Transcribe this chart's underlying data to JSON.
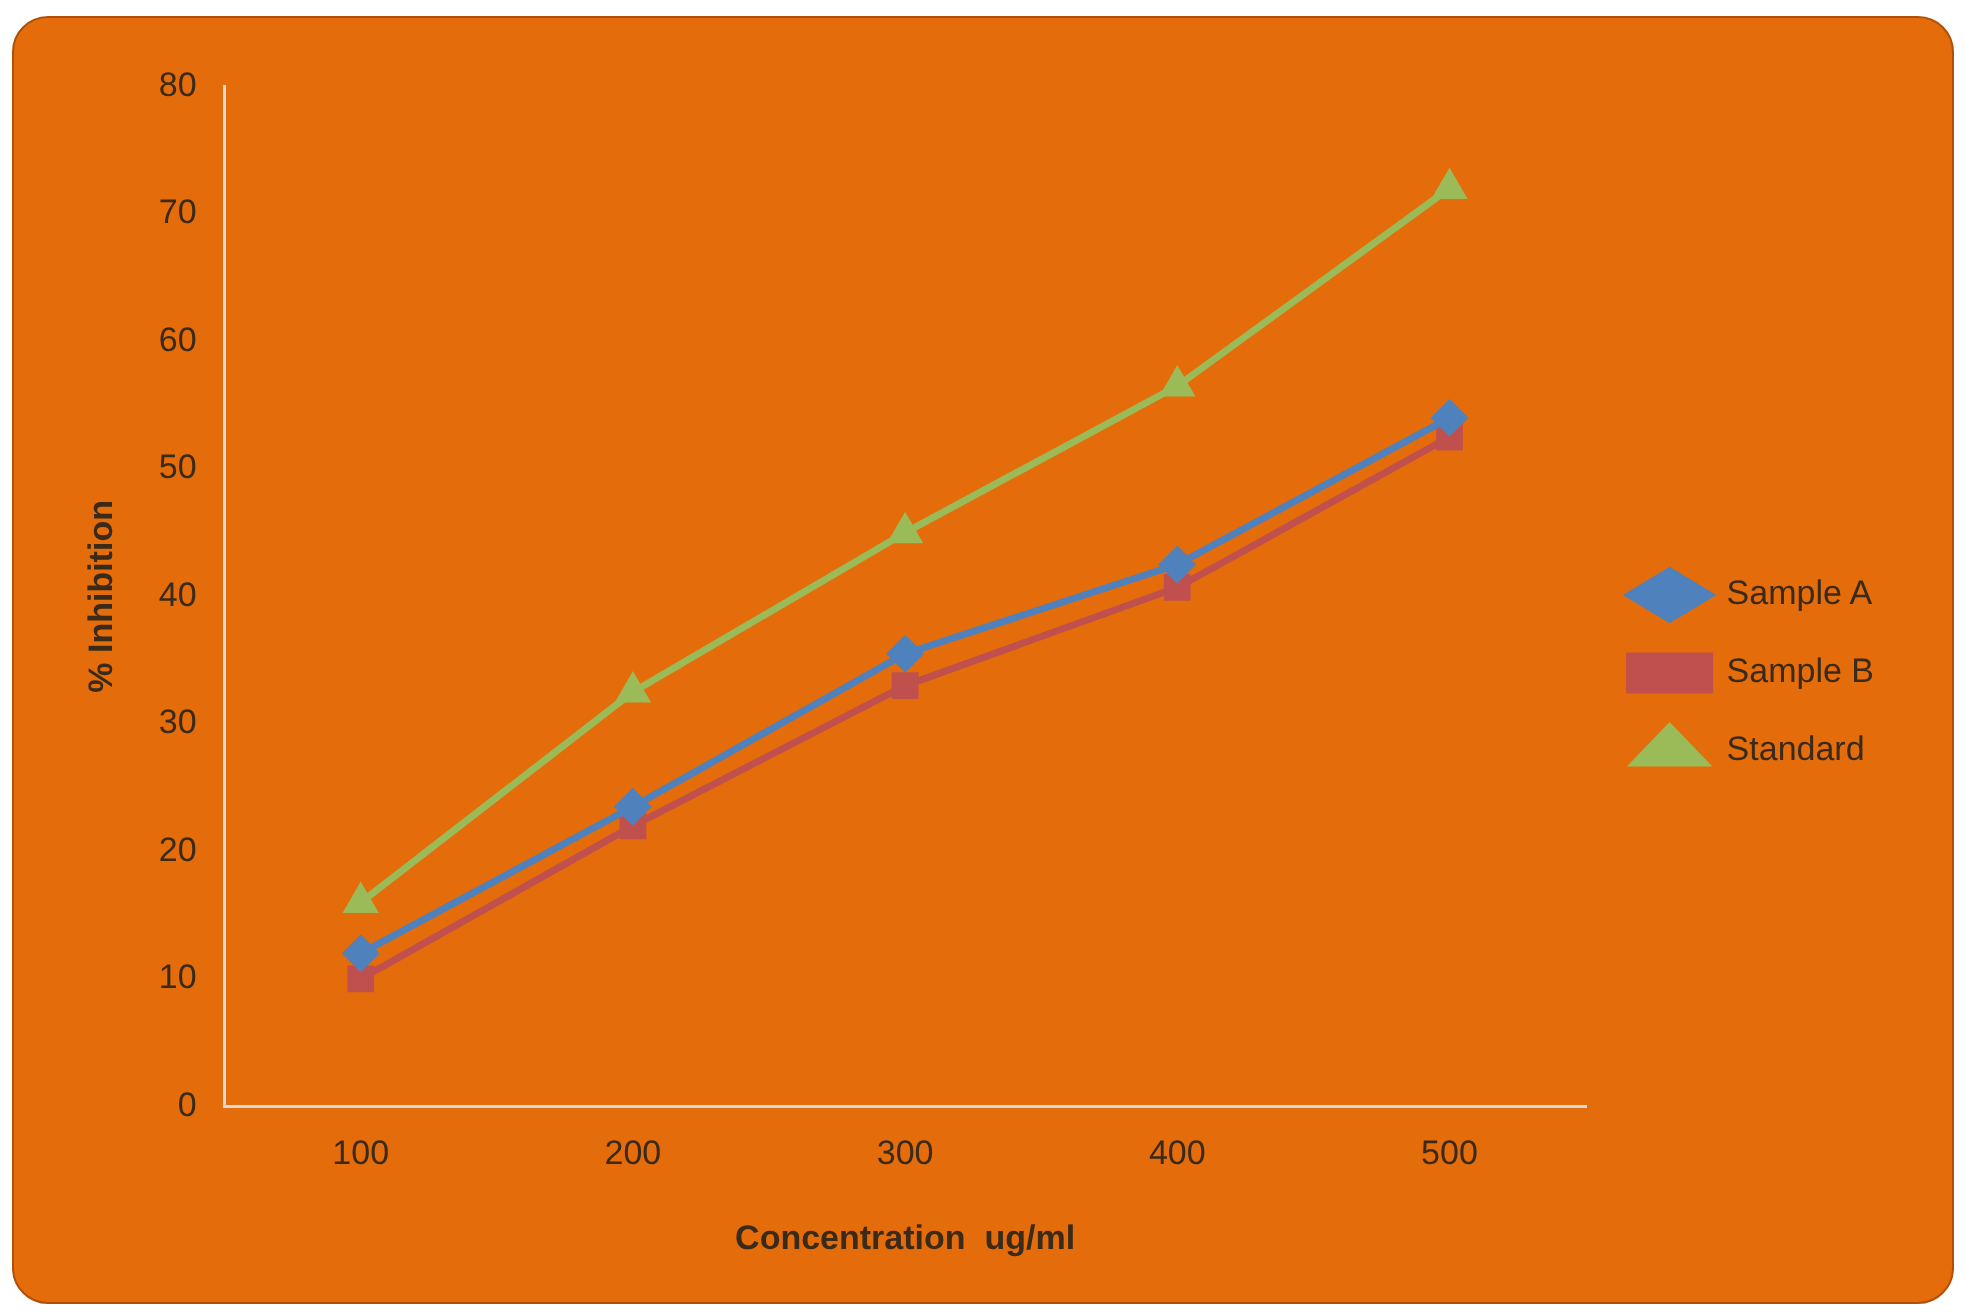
{
  "chart_data": {
    "type": "line",
    "xlabel": "Concentration  ug/ml",
    "ylabel": "% Inhibition",
    "categories": [
      "100",
      "200",
      "300",
      "400",
      "500"
    ],
    "series": [
      {
        "name": "Sample A",
        "color": "#4f81bd",
        "marker": "diamond",
        "values": [
          12,
          23.5,
          35.5,
          42.5,
          54
        ]
      },
      {
        "name": "Sample B",
        "color": "#c0504d",
        "marker": "square",
        "values": [
          10,
          22,
          33,
          40.7,
          52.5
        ]
      },
      {
        "name": "Standard",
        "color": "#9bbb59",
        "marker": "triangle",
        "values": [
          16,
          32.5,
          45,
          56.5,
          72
        ]
      }
    ],
    "ylim": [
      0,
      80
    ],
    "yticks": [
      0,
      10,
      20,
      30,
      40,
      50,
      60,
      70,
      80
    ],
    "grid": false,
    "legend": "right"
  }
}
